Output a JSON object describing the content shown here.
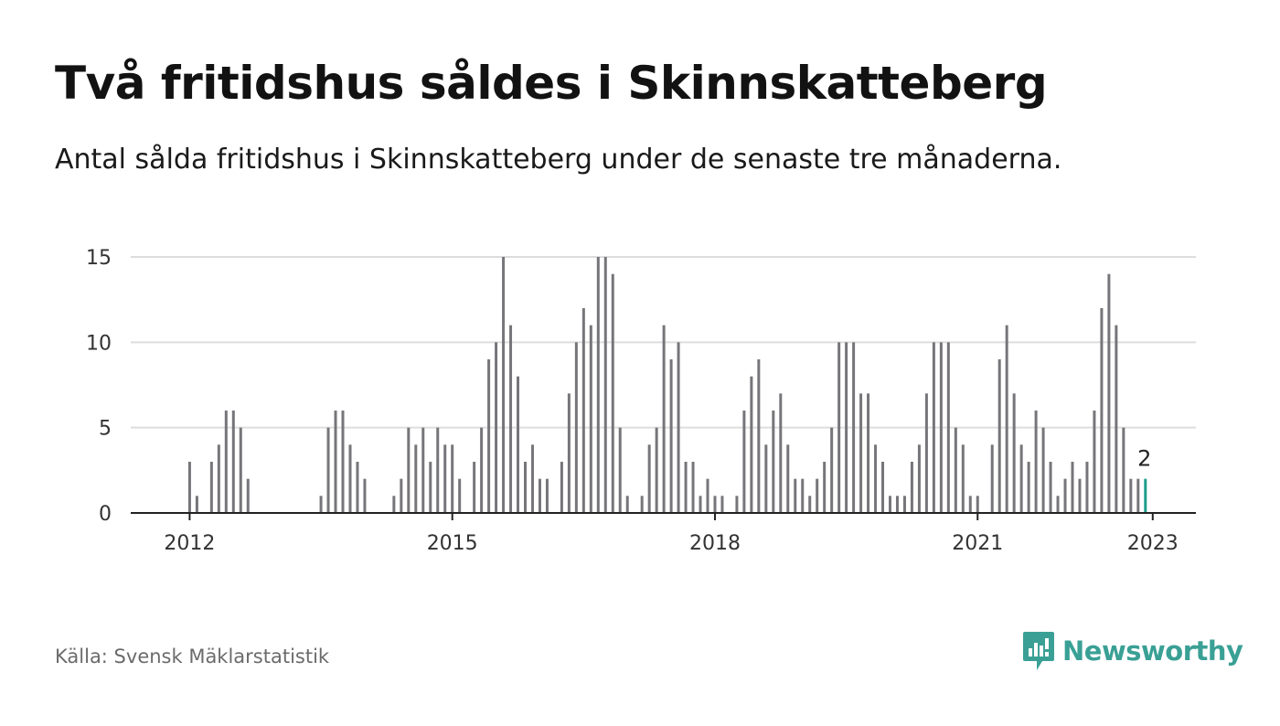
{
  "title": "Två fritidshus såldes i Skinnskatteberg",
  "subtitle": "Antal sålda fritidshus i Skinnskatteberg under de senaste tre månaderna.",
  "source": "Källa: Svensk Mäklarstatistik",
  "brand": {
    "name": "Newsworthy",
    "icon": "newsworthy-logo-icon",
    "color": "#3aa095"
  },
  "chart_data": {
    "type": "bar",
    "start": "2011-09",
    "end": "2023-01",
    "ylim": [
      0,
      15
    ],
    "yticks": [
      0,
      5,
      10,
      15
    ],
    "xticks": [
      {
        "label": "2012",
        "month": "2012-01"
      },
      {
        "label": "2015",
        "month": "2015-01"
      },
      {
        "label": "2018",
        "month": "2018-01"
      },
      {
        "label": "2021",
        "month": "2021-01"
      },
      {
        "label": "2023",
        "month": "2023-01"
      }
    ],
    "grid": true,
    "colors": {
      "bar": "#76767a",
      "highlight": "#1e9d8b",
      "grid": "#dddddd",
      "axis": "#222222"
    },
    "highlight_label": "2",
    "values": [
      0,
      0,
      0,
      0,
      3,
      1,
      0,
      3,
      4,
      6,
      6,
      5,
      2,
      0,
      0,
      0,
      0,
      0,
      0,
      0,
      0,
      0,
      1,
      5,
      6,
      6,
      4,
      3,
      2,
      0,
      0,
      0,
      1,
      2,
      5,
      4,
      5,
      3,
      5,
      4,
      4,
      2,
      0,
      3,
      5,
      9,
      10,
      15,
      11,
      8,
      3,
      4,
      2,
      2,
      0,
      3,
      7,
      10,
      12,
      11,
      15,
      15,
      14,
      5,
      1,
      0,
      1,
      4,
      5,
      11,
      9,
      10,
      3,
      3,
      1,
      2,
      1,
      1,
      0,
      1,
      6,
      8,
      9,
      4,
      6,
      7,
      4,
      2,
      2,
      1,
      2,
      3,
      5,
      10,
      10,
      10,
      7,
      7,
      4,
      3,
      1,
      1,
      1,
      3,
      4,
      7,
      10,
      10,
      10,
      5,
      4,
      1,
      1,
      0,
      4,
      9,
      11,
      7,
      4,
      3,
      6,
      5,
      3,
      1,
      2,
      3,
      2,
      3,
      6,
      12,
      14,
      11,
      5,
      2,
      2,
      2
    ]
  }
}
